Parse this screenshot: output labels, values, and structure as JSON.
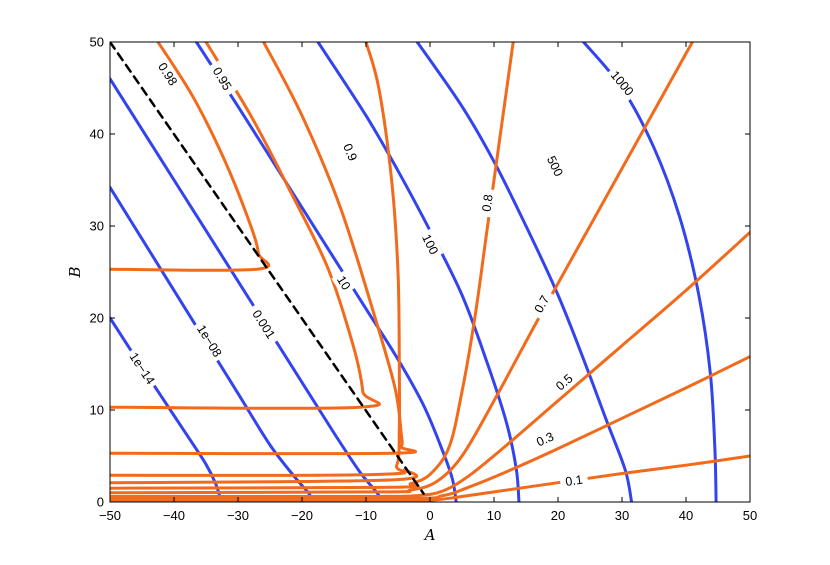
{
  "chart_data": {
    "type": "contour",
    "xlabel": "A",
    "ylabel": "B",
    "xlim": [
      -50,
      50
    ],
    "ylim": [
      0,
      50
    ],
    "xticks": [
      -50,
      -40,
      -30,
      -20,
      -10,
      0,
      10,
      20,
      30,
      40,
      50
    ],
    "yticks": [
      0,
      10,
      20,
      30,
      40,
      50
    ],
    "grid": false,
    "colors": {
      "blue": "#3344ee",
      "orange": "#f26a1b",
      "dashed": "#000000"
    },
    "series": [
      {
        "color": "blue",
        "label": "1e−14",
        "label_at": [
          -45,
          14.5
        ],
        "points": [
          [
            -50,
            20
          ],
          [
            -46,
            15.7
          ],
          [
            -42,
            11.5
          ],
          [
            -38,
            7.3
          ],
          [
            -35,
            4.1
          ],
          [
            -33.5,
            2
          ],
          [
            -32.6,
            0
          ]
        ]
      },
      {
        "color": "blue",
        "label": "1e−08",
        "label_at": [
          -34.5,
          17.5
        ],
        "points": [
          [
            -50,
            34.2
          ],
          [
            -45,
            28.6
          ],
          [
            -40,
            23
          ],
          [
            -35,
            17.4
          ],
          [
            -30,
            11.8
          ],
          [
            -25,
            6.2
          ],
          [
            -21,
            2.6
          ],
          [
            -19,
            1
          ],
          [
            -18.3,
            0
          ]
        ]
      },
      {
        "color": "blue",
        "label": "0.001",
        "label_at": [
          -26,
          19.3
        ],
        "points": [
          [
            -50,
            46
          ],
          [
            -45,
            40.5
          ],
          [
            -40,
            35
          ],
          [
            -35,
            29.5
          ],
          [
            -30,
            24
          ],
          [
            -25,
            18.5
          ],
          [
            -20,
            13
          ],
          [
            -15,
            7.5
          ],
          [
            -11,
            3.3
          ],
          [
            -8.5,
            1.2
          ],
          [
            -7.3,
            0
          ]
        ]
      },
      {
        "color": "blue",
        "label": "10",
        "label_at": [
          -13.5,
          23.8
        ],
        "points": [
          [
            -36.5,
            50
          ],
          [
            -30,
            43
          ],
          [
            -25,
            37.5
          ],
          [
            -20,
            32
          ],
          [
            -15,
            26.5
          ],
          [
            -10,
            21
          ],
          [
            -5,
            15.5
          ],
          [
            -1,
            10.5
          ],
          [
            2,
            5.5
          ],
          [
            3.5,
            2.5
          ],
          [
            4.1,
            0
          ]
        ]
      },
      {
        "color": "blue",
        "label": "100",
        "label_at": [
          0,
          28
        ],
        "points": [
          [
            -17.5,
            50
          ],
          [
            -10,
            42
          ],
          [
            -5,
            36
          ],
          [
            0,
            29.5
          ],
          [
            5,
            22.5
          ],
          [
            9,
            15
          ],
          [
            12,
            8.5
          ],
          [
            13.5,
            3.5
          ],
          [
            13.9,
            0
          ]
        ]
      },
      {
        "color": "blue",
        "label": "500",
        "label_at": [
          19.5,
          36.5
        ],
        "points": [
          [
            -2,
            50
          ],
          [
            5,
            43
          ],
          [
            10,
            37
          ],
          [
            15,
            30
          ],
          [
            20,
            22.5
          ],
          [
            24,
            15.5
          ],
          [
            27.5,
            9
          ],
          [
            30.5,
            3.5
          ],
          [
            31.5,
            0
          ]
        ]
      },
      {
        "color": "blue",
        "label": "1000",
        "label_at": [
          30,
          45.5
        ],
        "points": [
          [
            24,
            50
          ],
          [
            30,
            45
          ],
          [
            35,
            38.5
          ],
          [
            39,
            31
          ],
          [
            42,
            22.5
          ],
          [
            43.8,
            14
          ],
          [
            44.5,
            6
          ],
          [
            44.7,
            0
          ]
        ]
      },
      {
        "color": "orange",
        "label": "0.98",
        "label_at": [
          -41,
          46.5
        ],
        "points": [
          [
            -42.5,
            50
          ],
          [
            -37,
            44
          ],
          [
            -32,
            37
          ],
          [
            -28,
            30
          ],
          [
            -26.8,
            27
          ],
          [
            -27,
            25.3
          ],
          [
            -50,
            25.3
          ]
        ]
      },
      {
        "color": "orange",
        "label": "0.95",
        "label_at": [
          -32.5,
          46
        ],
        "points": [
          [
            -35,
            50
          ],
          [
            -28,
            42
          ],
          [
            -22,
            34
          ],
          [
            -16,
            25.5
          ],
          [
            -12,
            17
          ],
          [
            -10.5,
            12
          ],
          [
            -11,
            10.3
          ],
          [
            -50,
            10.3
          ]
        ]
      },
      {
        "color": "orange",
        "label": "0.9",
        "label_at": [
          -12.5,
          38
        ],
        "points": [
          [
            -26,
            50
          ],
          [
            -20,
            42
          ],
          [
            -14,
            32
          ],
          [
            -9,
            21
          ],
          [
            -5.5,
            12.5
          ],
          [
            -4.5,
            7.5
          ],
          [
            -4.5,
            6
          ],
          [
            -6,
            5.3
          ],
          [
            -50,
            5.3
          ]
        ]
      },
      {
        "color": "orange",
        "points": [
          [
            -10,
            50
          ],
          [
            -8,
            45
          ],
          [
            -6,
            35
          ],
          [
            -5,
            25
          ],
          [
            -4.8,
            15
          ],
          [
            -4.8,
            8
          ],
          [
            -5.2,
            4
          ],
          [
            -8,
            3
          ],
          [
            -50,
            2.9
          ]
        ]
      },
      {
        "color": "orange",
        "points": [
          [
            -4,
            3.5
          ],
          [
            -6,
            2.4
          ],
          [
            -50,
            2.1
          ]
        ]
      },
      {
        "color": "orange",
        "label": "0.8",
        "label_at": [
          9,
          32.5
        ],
        "points": [
          [
            13,
            50
          ],
          [
            11,
            40
          ],
          [
            9,
            30
          ],
          [
            7,
            20
          ],
          [
            5,
            12
          ],
          [
            3,
            6
          ],
          [
            0,
            3
          ],
          [
            -3,
            2
          ],
          [
            -6,
            1.6
          ],
          [
            -50,
            1.5
          ]
        ]
      },
      {
        "color": "orange",
        "label": "0.7",
        "label_at": [
          17.5,
          21.5
        ],
        "points": [
          [
            41,
            50
          ],
          [
            33,
            40
          ],
          [
            25,
            30
          ],
          [
            17,
            20
          ],
          [
            10,
            11
          ],
          [
            5,
            5
          ],
          [
            1,
            2.2
          ],
          [
            -3,
            1.3
          ],
          [
            -8,
            1.1
          ],
          [
            -50,
            1.0
          ]
        ]
      },
      {
        "color": "orange",
        "label": "0.5",
        "label_at": [
          21,
          13
        ],
        "points": [
          [
            50,
            29.3
          ],
          [
            40,
            23
          ],
          [
            30,
            17
          ],
          [
            20,
            11
          ],
          [
            12,
            6.2
          ],
          [
            6,
            2.8
          ],
          [
            2,
            1.2
          ],
          [
            -2,
            0.7
          ],
          [
            -10,
            0.6
          ],
          [
            -50,
            0.6
          ]
        ]
      },
      {
        "color": "orange",
        "label": "0.3",
        "label_at": [
          18,
          6.8
        ],
        "points": [
          [
            50,
            15.8
          ],
          [
            40,
            12.4
          ],
          [
            30,
            9.1
          ],
          [
            20,
            5.8
          ],
          [
            12,
            3.3
          ],
          [
            6,
            1.6
          ],
          [
            2,
            0.7
          ],
          [
            -5,
            0.35
          ],
          [
            -50,
            0.3
          ]
        ]
      },
      {
        "color": "orange",
        "label": "0.1",
        "label_at": [
          22.5,
          2.3
        ],
        "points": [
          [
            50,
            5
          ],
          [
            40,
            4
          ],
          [
            30,
            3.1
          ],
          [
            20,
            2.1
          ],
          [
            10,
            1.1
          ],
          [
            5,
            0.6
          ],
          [
            0,
            0.2
          ],
          [
            -10,
            0.1
          ],
          [
            -50,
            0.1
          ]
        ]
      },
      {
        "color": "dashed",
        "points": [
          [
            -50,
            50
          ],
          [
            -1,
            0.9
          ]
        ]
      }
    ]
  }
}
